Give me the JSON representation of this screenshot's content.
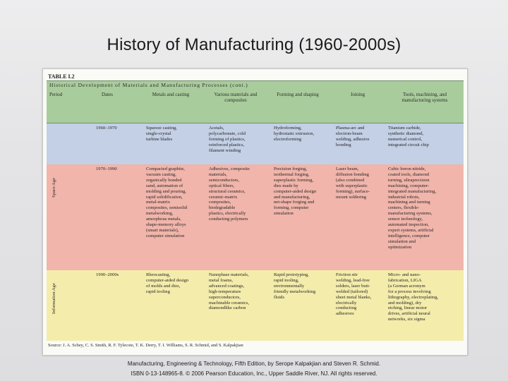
{
  "slide": {
    "title": "History of Manufacturing (1960-2000s)"
  },
  "table": {
    "label": "TABLE I.2",
    "caption": "Historical Development of Materials and Manufacturing Processes (cont.)",
    "headers": [
      "Period",
      "Dates",
      "Metals and casting",
      "Various materials and composites",
      "Forming and shaping",
      "Joining",
      "Tools, machining, and manufacturing systems"
    ],
    "rows": [
      {
        "period": "",
        "dates": "1960–1970",
        "metals": "Squeeze casting,\nsingle-crystal\nturbine blades",
        "materials": "Acetals,\npolycarbonate, cold\nforming of plastics,\nreinforced plastics,\nfilament winding",
        "forming": "Hydroforming,\nhydrostatic extrusion,\nelectroforming",
        "joining": "Plasma-arc and\nelectron-beam\nwelding, adhesive\nbonding",
        "tools": "Titanium carbide,\nsynthetic diamond,\nnumerical control,\nintegrated circuit chip"
      },
      {
        "period": "Space Age",
        "dates": "1970–1990",
        "metals": "Compacted graphite,\nvacuum casting,\norganically bonded\nsand, automation of\nmolding and pouring,\nrapid solidification,\nmetal-matrix\ncomposites, semisolid\nmetalworking,\namorphous metals,\nshape-memory alloys\n(smart materials),\ncomputer simulation",
        "materials": "Adhesives, composite\nmaterials,\nsemiconductors,\noptical fibers,\nstructural ceramics,\nceramic-matrix\ncomposites,\nbiodegradable\nplastics, electrically\nconducting polymers",
        "forming": "Precision forging,\nisothermal forging,\nsuperplastic forming,\ndies made by\ncomputer-aided design\nand manufacturing,\nnet-shape forging and\nforming, computer\nsimulation",
        "joining": "Laser beam,\ndiffusion bonding\n(also combined\nwith superplastic\nforming), surface-\nmount soldering",
        "tools": "Cubic boron nitride,\ncoated tools, diamond\nturning, ultraprecision\nmachining, computer-\nintegrated manufacturing,\nindustrial robots,\nmachining and turning\ncenters, flexible-\nmanufacturing systems,\nsensor technology,\nautomated inspection,\nexpert systems, artificial\nintelligence, computer\nsimulation and\noptimization"
      },
      {
        "period": "Information Age",
        "dates": "1990–2000s",
        "metals": "Rheocasting,\ncomputer-aided design\nof molds and dies,\nrapid tooling",
        "materials": "Nanophase materials,\nmetal foams,\nadvanced coatings,\nhigh-temperature\nsuperconductors,\nmachinable ceramics,\ndiamondlike carbon",
        "forming": "Rapid prototyping,\nrapid tooling,\nenvironmentally\nfriendly metalworking\nfluids",
        "joining": "Friction stir\nwelding, lead-free\nsolders, laser butt-\nwelded (tailored)\nsheet metal blanks,\nelectrically\nconducting\nadhesives",
        "tools": "Micro- and nano-\nfabrication, LIGA\n(a German acronym\nfor a process involving\nlithography, electroplating,\nand molding), dry\netching, linear motor\ndrives, artificial neural\nnetworks, six sigma"
      }
    ],
    "source": "Source: J. A. Schey, C. S. Smith, R. F. Tylecote, T. K. Derry, T. I. Williams, S. R. Schmid, and S. Kalpakjian"
  },
  "footer": {
    "line1": "Manufacturing, Engineering & Technology, Fifth Edition, by Serope Kalpakjian and Steven R. Schmid.",
    "line2": "ISBN 0-13-148965-8. © 2006 Pearson Education, Inc., Upper Saddle River, NJ. All rights reserved."
  },
  "colors": {
    "header_green": "#a9cc9c",
    "row_blue": "#c3d0e6",
    "row_salmon": "#f1b5ab",
    "row_yellow": "#f4ecab"
  }
}
